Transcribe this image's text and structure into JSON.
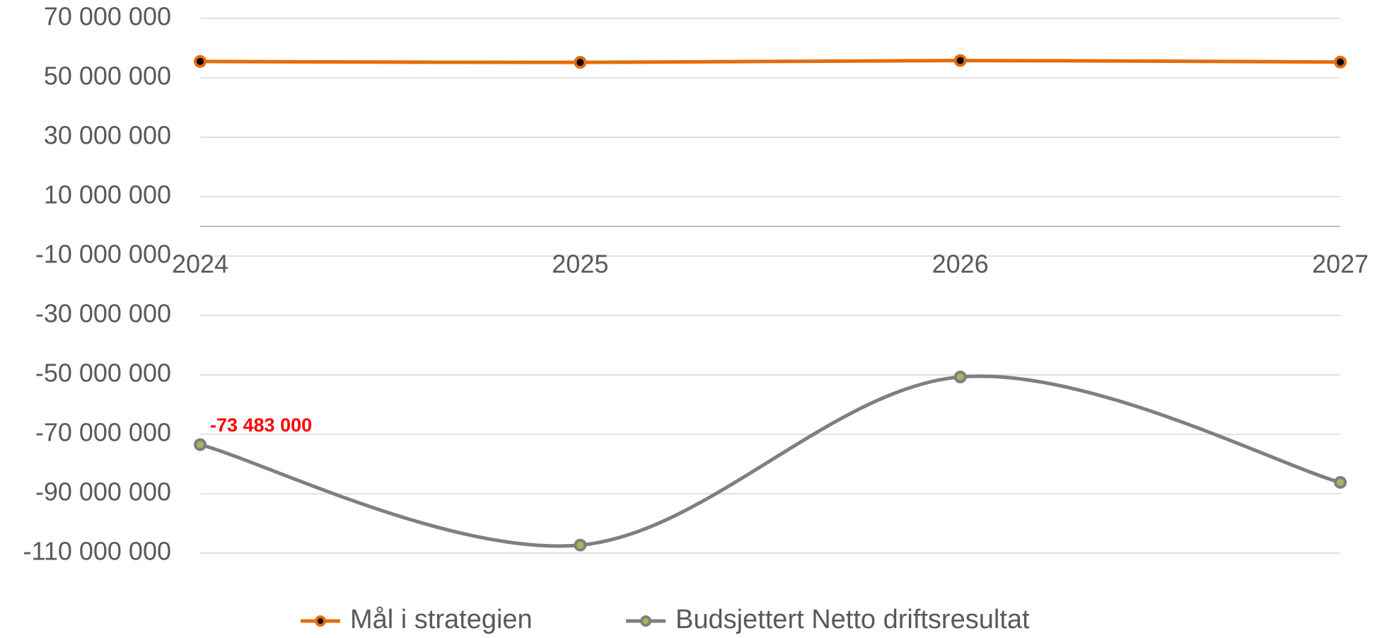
{
  "chart_data": {
    "type": "line",
    "categories": [
      "2024",
      "2025",
      "2026",
      "2027"
    ],
    "series": [
      {
        "name": "Mål i strategien",
        "color": "#e46c0a",
        "values": [
          55500000,
          55200000,
          55800000,
          55300000
        ]
      },
      {
        "name": "Budsjettert Netto driftsresultat",
        "color": "#7f7f7f",
        "values": [
          -73483000,
          -107300000,
          -50700000,
          -86200000
        ],
        "value_labels": [
          "-73 483 000",
          null,
          null,
          null
        ],
        "value_label_color": "#ff0000"
      }
    ],
    "ylim": [
      -110000000,
      70000000
    ],
    "yticks": [
      {
        "value": -110000000,
        "label": "-110 000 000"
      },
      {
        "value": -90000000,
        "label": "-90 000 000"
      },
      {
        "value": -70000000,
        "label": "-70 000 000"
      },
      {
        "value": -50000000,
        "label": "-50 000 000"
      },
      {
        "value": -30000000,
        "label": "-30 000 000"
      },
      {
        "value": -10000000,
        "label": "-10 000 000"
      },
      {
        "value": 10000000,
        "label": "10 000 000"
      },
      {
        "value": 30000000,
        "label": "30 000 000"
      },
      {
        "value": 50000000,
        "label": "50 000 000"
      },
      {
        "value": 70000000,
        "label": "70 000 000"
      }
    ],
    "grid": true,
    "smooth": true,
    "legend": "bottom"
  }
}
